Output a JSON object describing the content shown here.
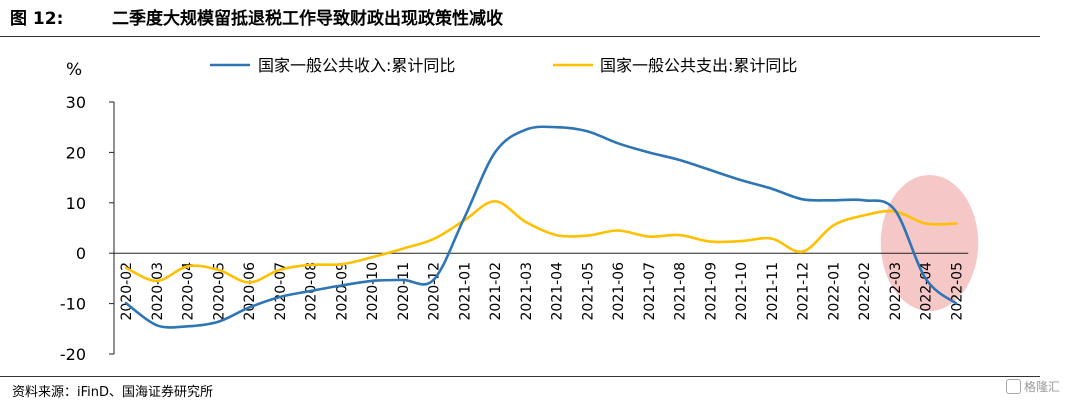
{
  "figure": {
    "number": "图 12:",
    "title": "二季度大规模留抵退税工作导致财政出现政策性减收"
  },
  "source": "资料来源：iFinD、国海证券研究所",
  "watermark": "格隆汇",
  "colors": {
    "revenue": "#2E75B6",
    "expenditure": "#FFC000",
    "highlight": "#F4B9B9"
  },
  "chart_data": {
    "type": "line",
    "ylabel": "%",
    "ylim": [
      -20,
      30
    ],
    "yticks": [
      -20,
      -10,
      0,
      10,
      20,
      30
    ],
    "grid": false,
    "legend_position": "top",
    "categories": [
      "2020-02",
      "2020-03",
      "2020-04",
      "2020-05",
      "2020-06",
      "2020-07",
      "2020-08",
      "2020-09",
      "2020-10",
      "2020-11",
      "2020-12",
      "2021-01",
      "2021-02",
      "2021-03",
      "2021-04",
      "2021-05",
      "2021-06",
      "2021-07",
      "2021-08",
      "2021-09",
      "2021-10",
      "2021-11",
      "2021-12",
      "2022-01",
      "2022-02",
      "2022-03",
      "2022-04",
      "2022-05"
    ],
    "series": [
      {
        "name": "国家一般公共收入:累计同比",
        "values": [
          -9.9,
          -14.3,
          -14.5,
          -13.6,
          -10.8,
          -8.7,
          -7.5,
          -6.4,
          -5.5,
          -5.3,
          -5.3,
          7.0,
          20.0,
          24.5,
          25.0,
          24.2,
          21.8,
          20.0,
          18.5,
          16.5,
          14.5,
          12.8,
          10.7,
          10.5,
          10.5,
          8.6,
          -5.0,
          -10.0
        ]
      },
      {
        "name": "国家一般公共支出:累计同比",
        "values": [
          -2.9,
          -5.5,
          -2.6,
          -3.3,
          -5.8,
          -3.3,
          -2.3,
          -2.2,
          -0.8,
          0.9,
          2.8,
          6.5,
          10.3,
          6.2,
          3.6,
          3.5,
          4.5,
          3.3,
          3.6,
          2.3,
          2.4,
          2.9,
          0.3,
          5.5,
          7.5,
          8.3,
          5.9,
          5.9
        ]
      }
    ],
    "highlight": {
      "from_category": "2022-03",
      "to_category": "2022-05"
    }
  }
}
